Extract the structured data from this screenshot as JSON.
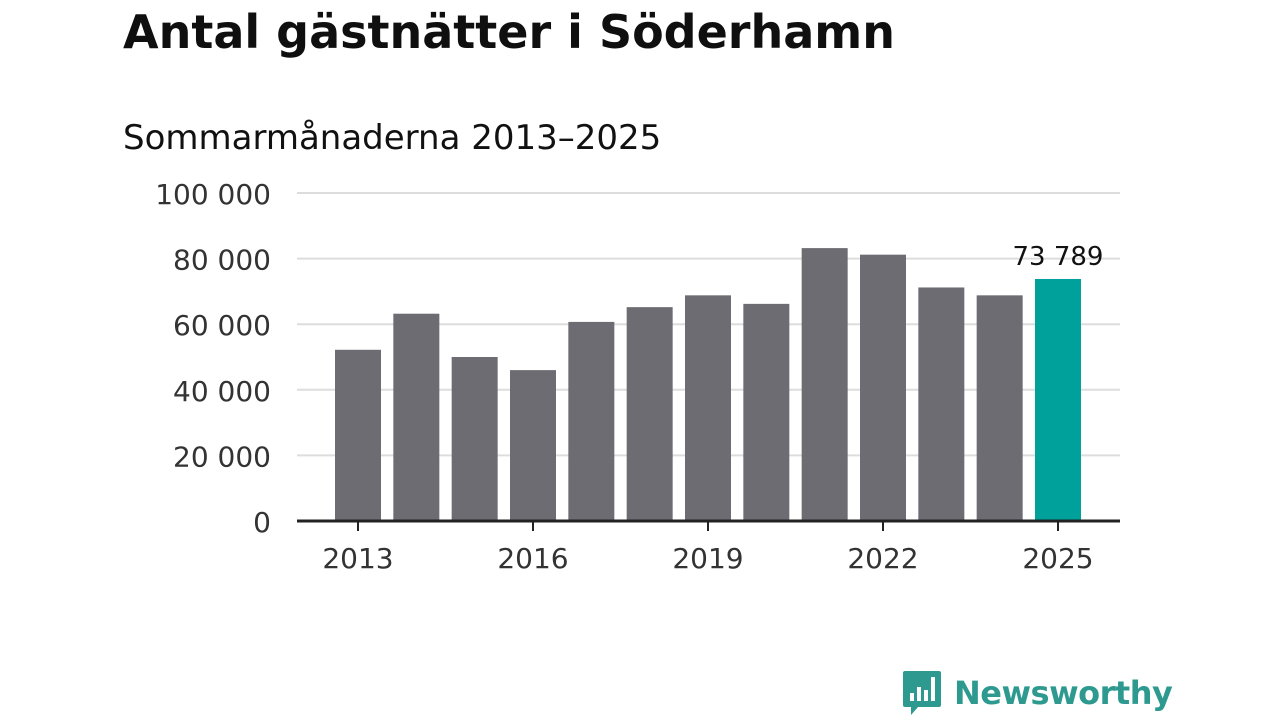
{
  "chart_data": {
    "type": "bar",
    "title": "Antal gästnätter i Söderhamn",
    "subtitle": "Sommarmånaderna 2013–2025",
    "categories": [
      "2013",
      "2014",
      "2015",
      "2016",
      "2017",
      "2018",
      "2019",
      "2020",
      "2021",
      "2022",
      "2023",
      "2024",
      "2025"
    ],
    "values": [
      52200,
      63200,
      50000,
      46000,
      60700,
      65200,
      68800,
      66200,
      83200,
      81200,
      71200,
      68800,
      73789
    ],
    "ylim": [
      0,
      100000
    ],
    "y_ticks": [
      0,
      20000,
      40000,
      60000,
      80000,
      100000
    ],
    "y_tick_labels": [
      "0",
      "20 000",
      "40 000",
      "60 000",
      "80 000",
      "100 000"
    ],
    "x_tick_labels": [
      "2013",
      "2016",
      "2019",
      "2022",
      "2025"
    ],
    "highlight_index": 12,
    "data_labels": [
      {
        "index": 12,
        "text": "73 789"
      }
    ],
    "grid": true,
    "colors": {
      "bar": "#6d6c72",
      "highlight": "#00a19a",
      "grid": "#dddddd",
      "axis": "#222222"
    }
  },
  "brand": {
    "name": "Newsworthy",
    "color": "#2e9a8f",
    "icon": "newsworthy-logo-icon"
  }
}
